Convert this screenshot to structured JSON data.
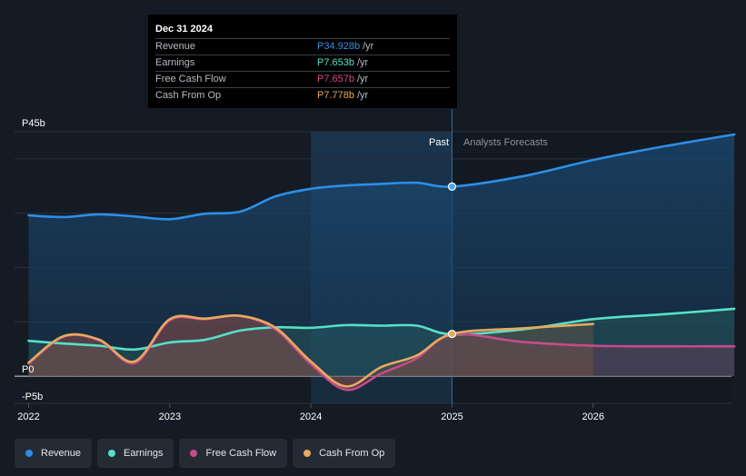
{
  "tooltip": {
    "date": "Dec 31 2024",
    "rows": [
      {
        "name": "Revenue",
        "value": "P34.928b",
        "unit": "/yr",
        "color": "#3b8ee0"
      },
      {
        "name": "Earnings",
        "value": "P7.653b",
        "unit": "/yr",
        "color": "#56e0c8"
      },
      {
        "name": "Free Cash Flow",
        "value": "P7.657b",
        "unit": "/yr",
        "color": "#d7498b"
      },
      {
        "name": "Cash From Op",
        "value": "P7.778b",
        "unit": "/yr",
        "color": "#e8a95c"
      }
    ]
  },
  "labels": {
    "past": "Past",
    "forecast": "Analysts Forecasts"
  },
  "legend": [
    {
      "name": "Revenue",
      "color": "#2d8ee6"
    },
    {
      "name": "Earnings",
      "color": "#56e0c8"
    },
    {
      "name": "Free Cash Flow",
      "color": "#c64b8a"
    },
    {
      "name": "Cash From Op",
      "color": "#e8a95c"
    }
  ],
  "chart_data": {
    "type": "line",
    "title": "",
    "xlabel": "",
    "ylabel": "",
    "xlim": [
      2021.9,
      2026.98
    ],
    "ylim": [
      -5,
      45
    ],
    "y_ticks": [
      {
        "value": 45,
        "label": "P45b"
      },
      {
        "value": 0,
        "label": "P0"
      },
      {
        "value": -5,
        "label": "-P5b"
      }
    ],
    "x_ticks": [
      {
        "value": 2022,
        "label": "2022"
      },
      {
        "value": 2023,
        "label": "2023"
      },
      {
        "value": 2024,
        "label": "2024"
      },
      {
        "value": 2025,
        "label": "2025"
      },
      {
        "value": 2026,
        "label": "2026"
      }
    ],
    "past_start": 2024.0,
    "divider": 2025.0,
    "series": [
      {
        "name": "Revenue",
        "color": "#2d8ee6",
        "x": [
          2022.0,
          2022.25,
          2022.5,
          2022.75,
          2023.0,
          2023.25,
          2023.5,
          2023.75,
          2024.0,
          2024.25,
          2024.5,
          2024.75,
          2025.0,
          2025.5,
          2026.0,
          2026.5,
          2027.0
        ],
        "values": [
          29.6,
          29.3,
          29.8,
          29.4,
          28.9,
          29.9,
          30.3,
          33.1,
          34.5,
          35.1,
          35.4,
          35.6,
          34.9,
          36.8,
          39.8,
          42.3,
          44.5
        ]
      },
      {
        "name": "Earnings",
        "color": "#56e0c8",
        "x": [
          2022.0,
          2022.25,
          2022.5,
          2022.75,
          2023.0,
          2023.25,
          2023.5,
          2023.75,
          2024.0,
          2024.25,
          2024.5,
          2024.75,
          2025.0,
          2025.5,
          2026.0,
          2026.5,
          2027.0
        ],
        "values": [
          6.5,
          6.0,
          5.6,
          4.9,
          6.2,
          6.7,
          8.4,
          9.0,
          8.9,
          9.4,
          9.3,
          9.3,
          7.7,
          8.6,
          10.5,
          11.4,
          12.4
        ]
      },
      {
        "name": "Free Cash Flow",
        "color": "#c64b8a",
        "x": [
          2022.0,
          2022.25,
          2022.5,
          2022.75,
          2023.0,
          2023.25,
          2023.5,
          2023.75,
          2024.0,
          2024.25,
          2024.5,
          2024.75,
          2025.0,
          2025.5,
          2026.0,
          2026.5,
          2027.0
        ],
        "values": [
          2.3,
          7.3,
          6.6,
          2.4,
          10.3,
          10.5,
          11.1,
          8.6,
          2.2,
          -2.5,
          0.5,
          3.3,
          7.66,
          6.3,
          5.6,
          5.5,
          5.5
        ]
      },
      {
        "name": "Cash From Op",
        "color": "#e8a95c",
        "x": [
          2022.0,
          2022.25,
          2022.5,
          2022.75,
          2023.0,
          2023.25,
          2023.5,
          2023.75,
          2024.0,
          2024.25,
          2024.5,
          2024.75,
          2025.0,
          2025.5,
          2026.0
        ],
        "values": [
          2.5,
          7.4,
          6.7,
          2.7,
          10.5,
          10.6,
          11.1,
          8.9,
          2.7,
          -1.9,
          1.7,
          3.8,
          7.78,
          8.8,
          9.6
        ]
      }
    ]
  }
}
